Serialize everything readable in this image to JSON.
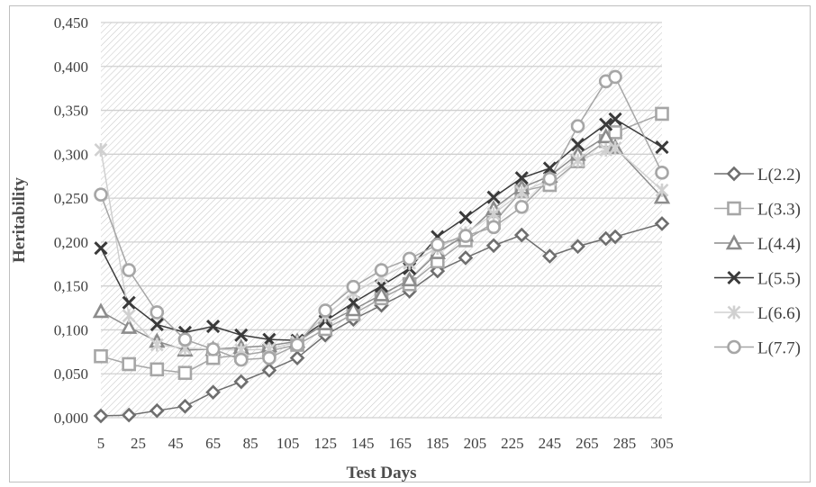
{
  "chart_data": {
    "type": "line",
    "title": "",
    "xlabel": "Test Days",
    "ylabel": "Heritability",
    "x": [
      5,
      20,
      35,
      50,
      65,
      80,
      95,
      110,
      125,
      140,
      155,
      170,
      185,
      200,
      215,
      230,
      245,
      260,
      275,
      280,
      305
    ],
    "xticks": [
      "5",
      "25",
      "45",
      "65",
      "85",
      "105",
      "125",
      "145",
      "165",
      "185",
      "205",
      "225",
      "245",
      "265",
      "285",
      "305"
    ],
    "xtick_values": [
      5,
      25,
      45,
      65,
      85,
      105,
      125,
      145,
      165,
      185,
      205,
      225,
      245,
      265,
      285,
      305
    ],
    "xlim": [
      5,
      305
    ],
    "ylim": [
      0,
      0.45
    ],
    "yticks": [
      "0,000",
      "0,050",
      "0,100",
      "0,150",
      "0,200",
      "0,250",
      "0,300",
      "0,350",
      "0,400",
      "0,450"
    ],
    "ytick_values": [
      0,
      0.05,
      0.1,
      0.15,
      0.2,
      0.25,
      0.3,
      0.35,
      0.4,
      0.45
    ],
    "grid": true,
    "legend_position": "right",
    "series": [
      {
        "name": "L(2.2)",
        "marker": "diamond",
        "color": "#6e6e6e",
        "values": [
          0.002,
          0.003,
          0.008,
          0.013,
          0.029,
          0.041,
          0.054,
          0.068,
          0.094,
          0.112,
          0.128,
          0.144,
          0.167,
          0.182,
          0.196,
          0.208,
          0.184,
          0.195,
          0.204,
          0.206,
          0.221
        ]
      },
      {
        "name": "L(3.3)",
        "marker": "square",
        "color": "#a6a6a6",
        "values": [
          0.07,
          0.061,
          0.055,
          0.051,
          0.068,
          0.071,
          0.076,
          0.083,
          0.101,
          0.118,
          0.136,
          0.152,
          0.178,
          0.202,
          0.222,
          0.258,
          0.265,
          0.292,
          0.315,
          0.325,
          0.346
        ]
      },
      {
        "name": "L(4.4)",
        "marker": "triangle",
        "color": "#8c8c8c",
        "values": [
          0.121,
          0.103,
          0.087,
          0.077,
          0.078,
          0.08,
          0.082,
          0.087,
          0.107,
          0.123,
          0.14,
          0.157,
          0.188,
          0.208,
          0.238,
          0.262,
          0.275,
          0.3,
          0.32,
          0.308,
          0.251
        ]
      },
      {
        "name": "L(5.5)",
        "marker": "x",
        "color": "#3a3a3a",
        "values": [
          0.193,
          0.131,
          0.106,
          0.097,
          0.104,
          0.094,
          0.089,
          0.088,
          0.11,
          0.131,
          0.15,
          0.17,
          0.206,
          0.228,
          0.251,
          0.273,
          0.284,
          0.311,
          0.334,
          0.34,
          0.308
        ]
      },
      {
        "name": "L(6.6)",
        "marker": "asterisk",
        "color": "#d0d0d0",
        "values": [
          0.305,
          0.116,
          0.083,
          0.079,
          0.078,
          0.077,
          0.078,
          0.086,
          0.116,
          0.142,
          0.16,
          0.176,
          0.193,
          0.21,
          0.232,
          0.257,
          0.271,
          0.293,
          0.305,
          0.307,
          0.259
        ]
      },
      {
        "name": "L(7.7)",
        "marker": "circle",
        "color": "#a6a6a6",
        "values": [
          0.254,
          0.168,
          0.12,
          0.089,
          0.078,
          0.066,
          0.068,
          0.083,
          0.122,
          0.149,
          0.168,
          0.181,
          0.197,
          0.207,
          0.217,
          0.24,
          0.272,
          0.332,
          0.383,
          0.388,
          0.279
        ]
      }
    ]
  }
}
